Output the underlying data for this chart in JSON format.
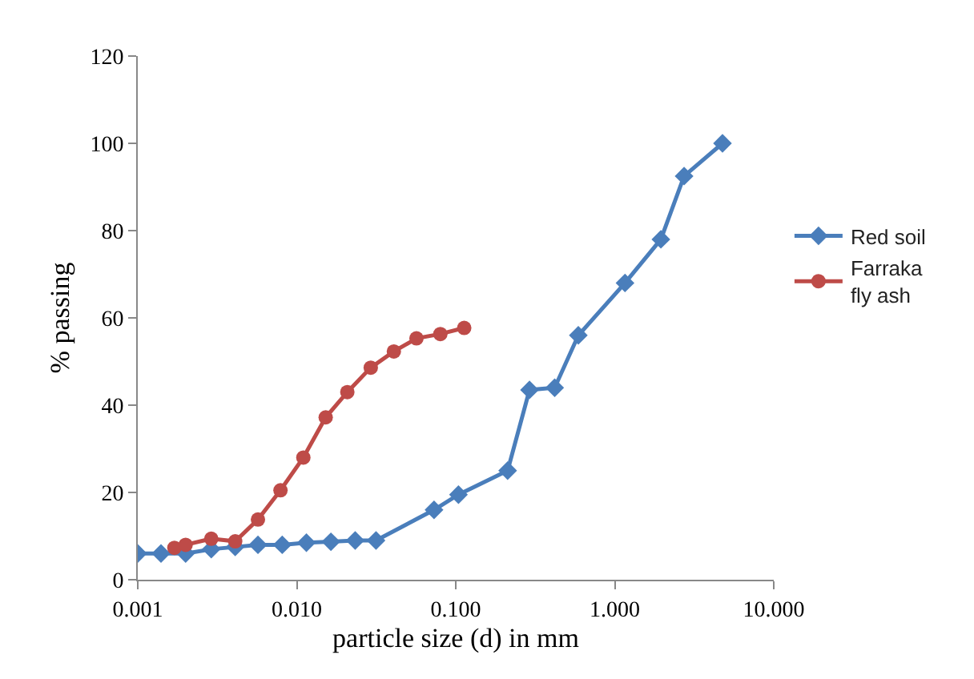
{
  "chart_data": {
    "type": "line",
    "xlabel": "particle size (d) in mm",
    "ylabel": "% passing",
    "log": "x",
    "xlim": [
      0.001,
      10
    ],
    "xticks": [
      {
        "value": 0.001,
        "label": "0.001"
      },
      {
        "value": 0.01,
        "label": "0.010"
      },
      {
        "value": 0.1,
        "label": "0.100"
      },
      {
        "value": 1,
        "label": "1.000"
      },
      {
        "value": 10,
        "label": "10.000"
      }
    ],
    "ylim": [
      0,
      120
    ],
    "yticks": [
      0,
      20,
      40,
      60,
      80,
      100,
      120
    ],
    "grid": false,
    "legend": "right",
    "series": [
      {
        "name": "Red soil",
        "color": "#4a7ebb",
        "marker": "diamond",
        "x": [
          0.001,
          0.0014,
          0.002,
          0.0029,
          0.0041,
          0.0057,
          0.0081,
          0.0115,
          0.0164,
          0.0233,
          0.0315,
          0.073,
          0.104,
          0.212,
          0.291,
          0.419,
          0.59,
          1.16,
          1.95,
          2.73,
          4.76
        ],
        "values": [
          6,
          6,
          6,
          7,
          7.5,
          8,
          8,
          8.5,
          8.7,
          9,
          9,
          16,
          19.5,
          25,
          43.5,
          44,
          56,
          68,
          78,
          92.5,
          100
        ]
      },
      {
        "name": "Farraka fly ash",
        "color": "#be4b48",
        "marker": "circle",
        "x": [
          0.0017,
          0.002,
          0.0029,
          0.0041,
          0.0057,
          0.0079,
          0.011,
          0.0152,
          0.0208,
          0.0292,
          0.0408,
          0.0566,
          0.08,
          0.113
        ],
        "values": [
          7.3,
          8,
          9.4,
          8.8,
          13.8,
          20.5,
          28,
          37.2,
          43,
          48.6,
          52.3,
          55.3,
          56.3,
          57.7
        ]
      }
    ]
  }
}
